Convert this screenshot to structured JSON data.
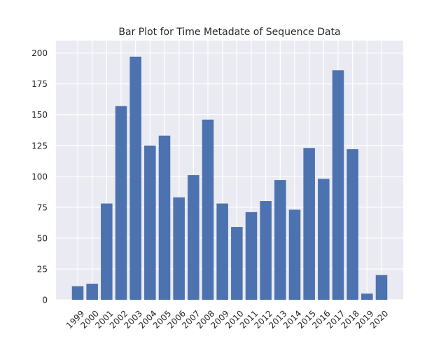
{
  "chart_data": {
    "type": "bar",
    "title": "Bar Plot for Time Metadate of Sequence Data",
    "xlabel": "",
    "ylabel": "",
    "categories": [
      "1999",
      "2000",
      "2001",
      "2002",
      "2003",
      "2004",
      "2005",
      "2006",
      "2007",
      "2008",
      "2009",
      "2010",
      "2011",
      "2012",
      "2013",
      "2014",
      "2015",
      "2016",
      "2017",
      "2018",
      "2019",
      "2020"
    ],
    "values": [
      11,
      13,
      78,
      157,
      197,
      125,
      133,
      83,
      101,
      146,
      78,
      59,
      71,
      80,
      97,
      73,
      123,
      98,
      186,
      122,
      5,
      20
    ],
    "ylim": [
      0,
      210
    ],
    "yticks": [
      0,
      25,
      50,
      75,
      100,
      125,
      150,
      175,
      200
    ],
    "grid": true,
    "colors": {
      "bar": "#4c72b0",
      "plot_background": "#eaeaf2",
      "grid": "#ffffff"
    }
  }
}
